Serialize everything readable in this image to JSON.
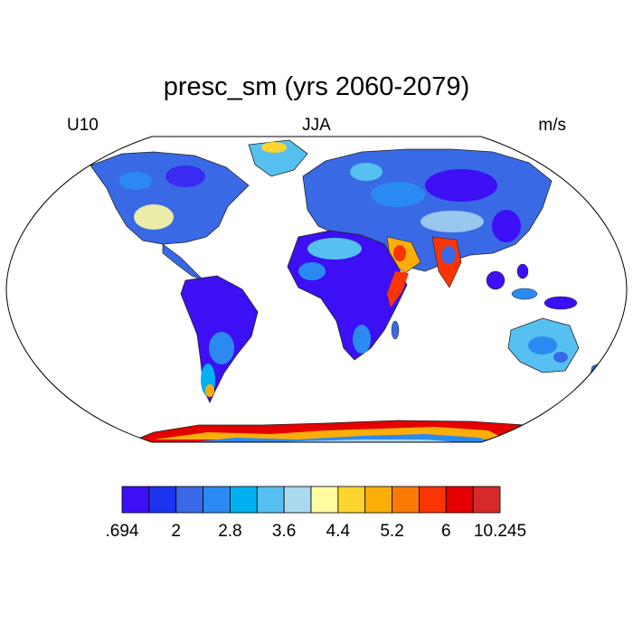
{
  "title": "presc_sm (yrs 2060-2079)",
  "left_string": "U10",
  "center_string": "JJA",
  "right_string": "m/s",
  "colorbar": {
    "colors": [
      "#3c0ff5",
      "#1c34ee",
      "#3a69e6",
      "#2a8af2",
      "#00b0f0",
      "#56c0f0",
      "#aad8ee",
      "#fefba0",
      "#fcd42e",
      "#fbae0a",
      "#fb7a06",
      "#fb3403",
      "#e40000",
      "#d62a2a"
    ],
    "labels": [
      ".694",
      "2",
      "2.8",
      "3.6",
      "4.4",
      "5.2",
      "6",
      "10.245"
    ]
  },
  "map": {
    "projection": "Robinson",
    "variable": "U10",
    "units": "m/s",
    "season": "JJA"
  }
}
